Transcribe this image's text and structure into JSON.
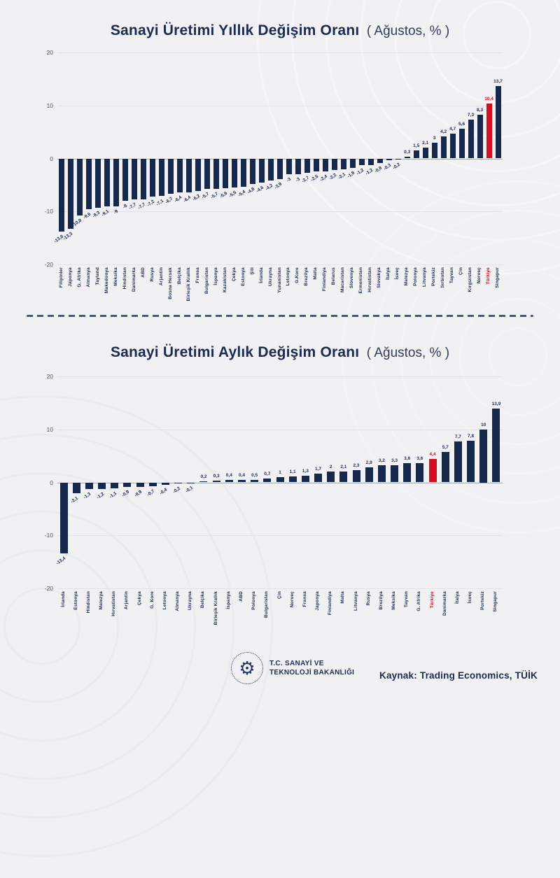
{
  "page": {
    "background_color": "#f1f1f4",
    "bar_color": "#16294c",
    "highlight_color": "#d40d1f",
    "title_color": "#1d2b52"
  },
  "chart_data": [
    {
      "type": "bar",
      "title": "Sanayi Üretimi Yıllık Değişim Oranı",
      "subtitle": "( Ağustos, % )",
      "categories": [
        "Filipinler",
        "Japonya",
        "G. Afrika",
        "Almanya",
        "Tayland",
        "Makedonya",
        "Meksika",
        "Hindistan",
        "Danimarka",
        "ABD",
        "Rusya",
        "Arjantin",
        "Bosna Hersek",
        "Belçika",
        "Birleşik Krallık",
        "Fransa",
        "Bulgaristan",
        "İspanya",
        "Kazakistan",
        "Çekya",
        "Estonya",
        "Şili",
        "İrlanda",
        "Ukrayna",
        "Yunanistan",
        "Letonya",
        "G.Kore",
        "Brezilya",
        "Malta",
        "Finlandiya",
        "Belarus",
        "Macaristan",
        "Slovenya",
        "Ermenistan",
        "Hırvatistan",
        "Slovakya",
        "İtalya",
        "İsveç",
        "Malezya",
        "Polonya",
        "Litvanya",
        "Portekiz",
        "Sırbistan",
        "Tayvan",
        "Çin",
        "Kırgızistan",
        "Norveç",
        "Türkiye",
        "Singapur"
      ],
      "values": [
        -13.8,
        -13.3,
        -10.8,
        -9.6,
        -9.3,
        -9.1,
        -9,
        -8,
        -7.7,
        -7.7,
        -7.2,
        -7.1,
        -6.7,
        -6.4,
        -6.4,
        -6.2,
        -5.7,
        -5.7,
        -5.6,
        -5.5,
        -5.4,
        -4.8,
        -4.6,
        -4.2,
        -3.9,
        -3,
        -3,
        -2.7,
        -2.5,
        -2.4,
        -2.2,
        -2.1,
        -1.8,
        -1.2,
        -1.2,
        -0.8,
        -0.3,
        -0.2,
        0.3,
        1.5,
        2.1,
        3,
        4.2,
        4.7,
        5.6,
        7.3,
        8.3,
        10.4,
        13.7
      ],
      "highlight_category": "Türkiye",
      "ylim": [
        -20,
        20
      ],
      "yticks": [
        20,
        10,
        0,
        -10,
        -20
      ],
      "grid": true,
      "legend": false,
      "xlabel": "",
      "ylabel": ""
    },
    {
      "type": "bar",
      "title": "Sanayi Üretimi Aylık Değişim Oranı",
      "subtitle": "( Ağustos, % )",
      "categories": [
        "İrlanda",
        "Estonya",
        "Hindistan",
        "Malezya",
        "Hırvatistan",
        "Arjantin",
        "Çekya",
        "G. Kore",
        "Letonya",
        "Almanya",
        "Ukrayna",
        "Belçika",
        "Birleşik Krallık",
        "İspanya",
        "ABD",
        "Polonya",
        "Bulgaristan",
        "Çin",
        "Norveç",
        "Fransa",
        "Japonya",
        "Finlandiya",
        "Malta",
        "Litvanya",
        "Rusya",
        "Brezilya",
        "Meksika",
        "Tayvan",
        "G. Afrika",
        "Türkiye",
        "Danimarka",
        "İtalya",
        "İsveç",
        "Portekiz",
        "Singapur"
      ],
      "values": [
        -13.4,
        -2.1,
        -1.3,
        -1.2,
        -1.1,
        -0.9,
        -0.9,
        -0.7,
        -0.4,
        -0.2,
        -0.1,
        0.2,
        0.3,
        0.4,
        0.4,
        0.5,
        0.7,
        1,
        1.1,
        1.3,
        1.7,
        2,
        2.1,
        2.3,
        2.9,
        3.2,
        3.3,
        3.6,
        3.6,
        4.4,
        5.7,
        7.7,
        7.8,
        10,
        13.9
      ],
      "highlight_category": "Türkiye",
      "ylim": [
        -20,
        20
      ],
      "yticks": [
        20,
        10,
        0,
        -10,
        -20
      ],
      "grid": true,
      "legend": false,
      "xlabel": "",
      "ylabel": ""
    }
  ],
  "footer": {
    "ministry_line1": "T.C. SANAYİ VE",
    "ministry_line2": "TEKNOLOJİ BAKANLIĞI",
    "source_label": "Kaynak: Trading Economics, TÜİK"
  }
}
